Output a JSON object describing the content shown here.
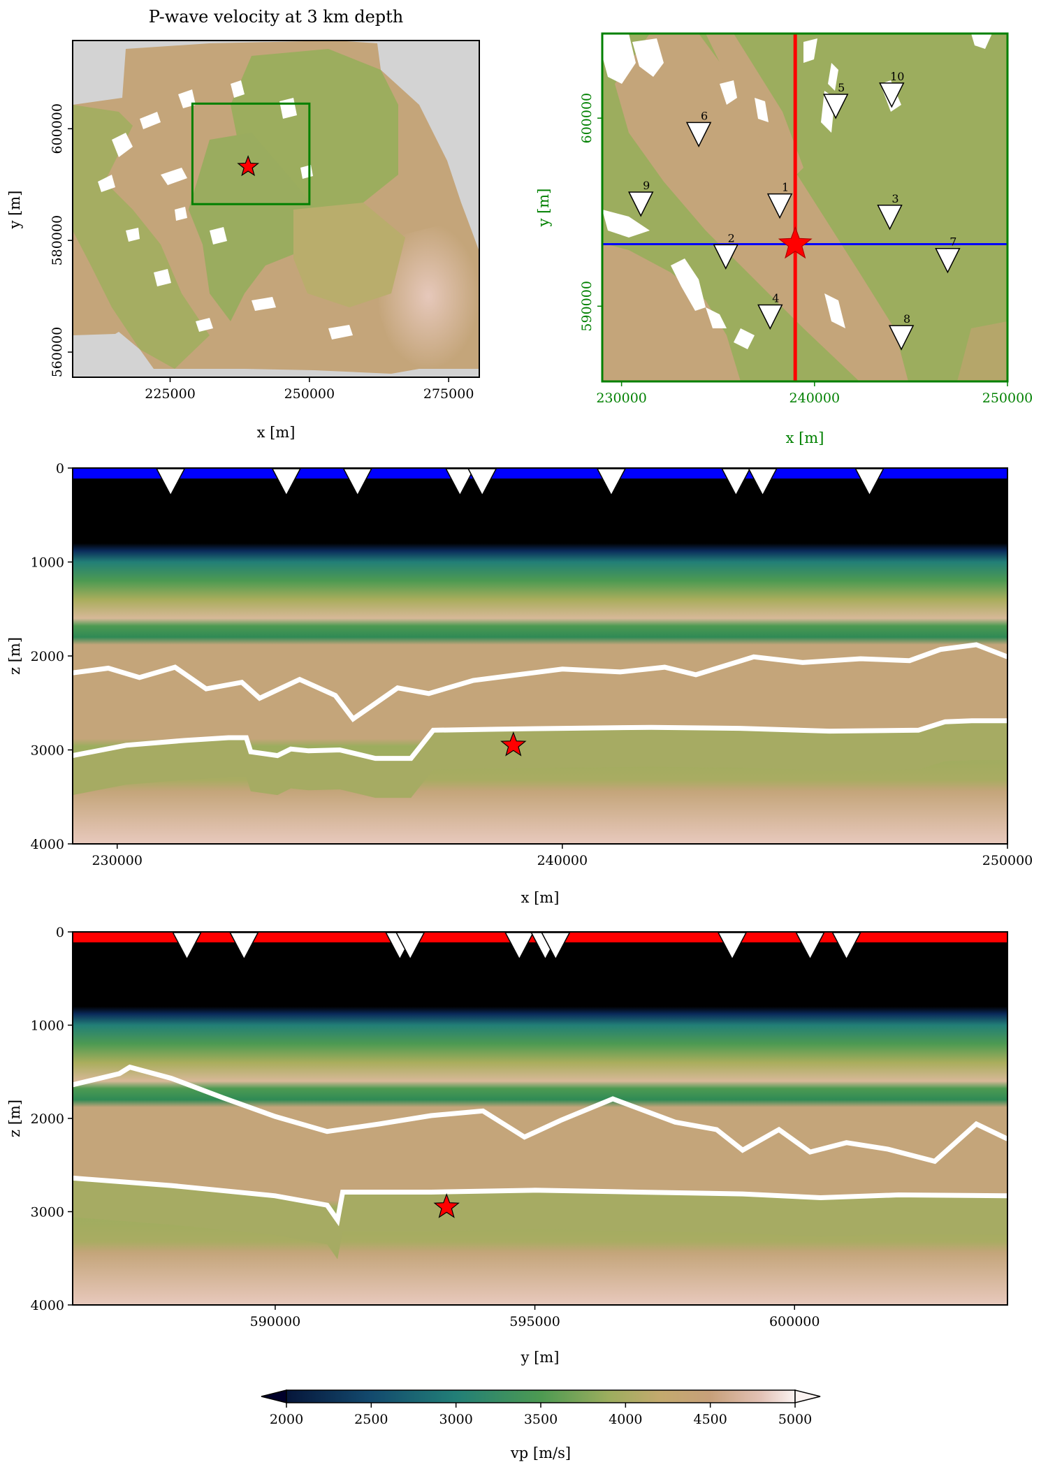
{
  "palette": {
    "sand": "#c4a57a",
    "green": "#9cad5e",
    "green_dark": "#4d9a52",
    "teal": "#2e7a6a",
    "blue_dark": "#0a2a5a",
    "pink": "#e6c8bb",
    "grey": "#d3d3d3",
    "frame_green": "#008000",
    "red": "#ff0000",
    "blue": "#0000ff",
    "black": "#000000",
    "white": "#ffffff"
  },
  "station_icon": "inverted-triangle-icon",
  "source_icon": "red-star-icon",
  "chart_data": [
    {
      "id": "map",
      "type": "heatmap",
      "title": "P-wave velocity at 3 km depth",
      "xlabel": "x [m]",
      "ylabel": "y [m]",
      "xlim": [
        207500,
        280500
      ],
      "ylim": [
        555500,
        615800
      ],
      "xticks": [
        225000,
        250000,
        275000
      ],
      "xtick_labels": [
        "225000",
        "250000",
        "275000"
      ],
      "yticks": [
        560000,
        580000,
        600000
      ],
      "ytick_labels": [
        "560000",
        "580000",
        "600000"
      ],
      "zoom_box": {
        "x": [
          229000,
          250000
        ],
        "y": [
          586500,
          604500
        ]
      },
      "source": {
        "x": 239000,
        "y": 593200
      }
    },
    {
      "id": "zoom",
      "type": "heatmap",
      "xlabel": "x [m]",
      "ylabel": "y [m]",
      "xlim": [
        229000,
        250000
      ],
      "ylim": [
        586000,
        604500
      ],
      "xticks": [
        230000,
        240000,
        250000
      ],
      "xtick_labels": [
        "230000",
        "240000",
        "250000"
      ],
      "yticks": [
        590000,
        600000
      ],
      "ytick_labels": [
        "590000",
        "600000"
      ],
      "source": {
        "x": 239000,
        "y": 593300
      },
      "profile_x": 239000,
      "profile_y": 593300,
      "stations": [
        {
          "label": "1",
          "x": 238200,
          "y": 595300
        },
        {
          "label": "2",
          "x": 235400,
          "y": 592600
        },
        {
          "label": "3",
          "x": 243900,
          "y": 594700
        },
        {
          "label": "4",
          "x": 237700,
          "y": 589400
        },
        {
          "label": "5",
          "x": 241100,
          "y": 600600
        },
        {
          "label": "6",
          "x": 234000,
          "y": 599100
        },
        {
          "label": "7",
          "x": 246900,
          "y": 592400
        },
        {
          "label": "8",
          "x": 244500,
          "y": 588300
        },
        {
          "label": "9",
          "x": 231000,
          "y": 595400
        },
        {
          "label": "10",
          "x": 244000,
          "y": 601200
        }
      ]
    },
    {
      "id": "section-x",
      "type": "heatmap",
      "xlabel": "x [m]",
      "ylabel": "z [m]",
      "xlim": [
        229000,
        250000
      ],
      "zlim": [
        0,
        4000
      ],
      "xticks": [
        230000,
        240000,
        250000
      ],
      "xtick_labels": [
        "230000",
        "240000",
        "250000"
      ],
      "zticks": [
        0,
        1000,
        2000,
        3000,
        4000
      ],
      "ztick_labels": [
        "0",
        "1000",
        "2000",
        "3000",
        "4000"
      ],
      "source": {
        "x": 238900,
        "z": 2950
      },
      "station_x": [
        231200,
        233800,
        235400,
        237700,
        238200,
        241100,
        243900,
        244500,
        246900
      ],
      "interface_shallow": [
        [
          229000,
          2180
        ],
        [
          229800,
          2130
        ],
        [
          230500,
          2230
        ],
        [
          231300,
          2120
        ],
        [
          232000,
          2350
        ],
        [
          232800,
          2280
        ],
        [
          233200,
          2450
        ],
        [
          234100,
          2250
        ],
        [
          234900,
          2420
        ],
        [
          235300,
          2670
        ],
        [
          236300,
          2340
        ],
        [
          237000,
          2400
        ],
        [
          238000,
          2260
        ],
        [
          239000,
          2200
        ],
        [
          240000,
          2140
        ],
        [
          241300,
          2170
        ],
        [
          242300,
          2120
        ],
        [
          243000,
          2200
        ],
        [
          244300,
          2010
        ],
        [
          245400,
          2070
        ],
        [
          246700,
          2030
        ],
        [
          247800,
          2050
        ],
        [
          248500,
          1930
        ],
        [
          249300,
          1880
        ],
        [
          250000,
          2010
        ]
      ],
      "interface_deep": [
        [
          229000,
          3060
        ],
        [
          230200,
          2950
        ],
        [
          231500,
          2900
        ],
        [
          232500,
          2870
        ],
        [
          232900,
          2870
        ],
        [
          233000,
          3020
        ],
        [
          233600,
          3060
        ],
        [
          233900,
          2990
        ],
        [
          234300,
          3010
        ],
        [
          235000,
          3000
        ],
        [
          235800,
          3090
        ],
        [
          236600,
          3090
        ],
        [
          237100,
          2790
        ],
        [
          238500,
          2780
        ],
        [
          240000,
          2770
        ],
        [
          242000,
          2760
        ],
        [
          244000,
          2770
        ],
        [
          246000,
          2800
        ],
        [
          248000,
          2790
        ],
        [
          248600,
          2700
        ],
        [
          249200,
          2690
        ],
        [
          250000,
          2690
        ]
      ]
    },
    {
      "id": "section-y",
      "type": "heatmap",
      "xlabel": "y [m]",
      "ylabel": "z [m]",
      "xlim": [
        586100,
        604100
      ],
      "zlim": [
        0,
        4000
      ],
      "xticks": [
        590000,
        595000,
        600000
      ],
      "xtick_labels": [
        "590000",
        "595000",
        "600000"
      ],
      "zticks": [
        0,
        1000,
        2000,
        3000,
        4000
      ],
      "ztick_labels": [
        "0",
        "1000",
        "2000",
        "3000",
        "4000"
      ],
      "source": {
        "x": 593300,
        "z": 2950
      },
      "station_x": [
        588300,
        589400,
        592400,
        592600,
        594700,
        595200,
        595400,
        598800,
        600300,
        601000
      ],
      "interface_shallow": [
        [
          586100,
          1640
        ],
        [
          587000,
          1520
        ],
        [
          587200,
          1450
        ],
        [
          588000,
          1570
        ],
        [
          589000,
          1780
        ],
        [
          590000,
          1980
        ],
        [
          591000,
          2140
        ],
        [
          592000,
          2060
        ],
        [
          593000,
          1970
        ],
        [
          594000,
          1920
        ],
        [
          594800,
          2200
        ],
        [
          595500,
          2020
        ],
        [
          596500,
          1790
        ],
        [
          597700,
          2040
        ],
        [
          598500,
          2120
        ],
        [
          599000,
          2340
        ],
        [
          599700,
          2120
        ],
        [
          600300,
          2360
        ],
        [
          601000,
          2260
        ],
        [
          601800,
          2330
        ],
        [
          602700,
          2460
        ],
        [
          603500,
          2060
        ],
        [
          604100,
          2220
        ]
      ],
      "interface_deep": [
        [
          586100,
          2640
        ],
        [
          588000,
          2720
        ],
        [
          590000,
          2830
        ],
        [
          591000,
          2930
        ],
        [
          591200,
          3090
        ],
        [
          591300,
          2790
        ],
        [
          593000,
          2790
        ],
        [
          595000,
          2770
        ],
        [
          597000,
          2790
        ],
        [
          599000,
          2810
        ],
        [
          600500,
          2850
        ],
        [
          602000,
          2820
        ],
        [
          604100,
          2830
        ]
      ]
    },
    {
      "id": "colorbar",
      "type": "heatmap",
      "label": "vp [m/s]",
      "range": [
        2000,
        5000
      ],
      "ticks": [
        2000,
        2500,
        3000,
        3500,
        4000,
        4500,
        5000
      ],
      "tick_labels": [
        "2000",
        "2500",
        "3000",
        "3500",
        "4000",
        "4500",
        "5000"
      ],
      "extend": "both",
      "stops": [
        {
          "v": 1850,
          "c": "#00002a"
        },
        {
          "v": 2000,
          "c": "#06163a"
        },
        {
          "v": 2500,
          "c": "#134a6e"
        },
        {
          "v": 3000,
          "c": "#227f77"
        },
        {
          "v": 3500,
          "c": "#4d9a52"
        },
        {
          "v": 3900,
          "c": "#9cad5e"
        },
        {
          "v": 4200,
          "c": "#c3aa6e"
        },
        {
          "v": 4500,
          "c": "#c7a07a"
        },
        {
          "v": 4800,
          "c": "#e3c2b6"
        },
        {
          "v": 5000,
          "c": "#fbf3f1"
        }
      ]
    }
  ]
}
